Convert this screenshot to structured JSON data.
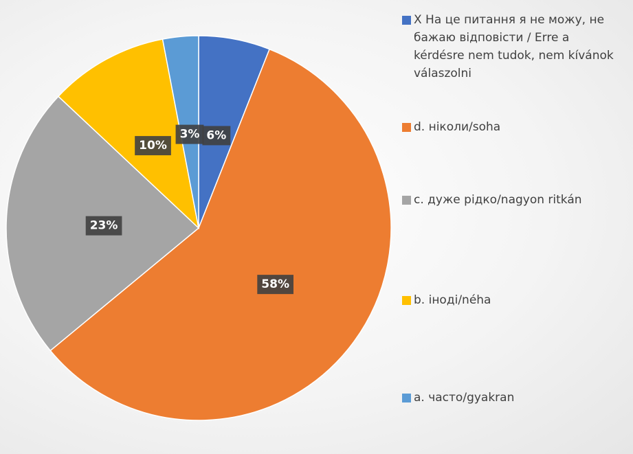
{
  "chart_data": {
    "type": "pie",
    "categories": [
      "X На це питання я не можу, не бажаю відповісти / Erre a kérdésre nem tudok, nem kívánok válaszolni",
      "d. ніколи/soha",
      "c. дуже рідко/nagyon ritkán",
      "b. іноді/néha",
      "a. часто/gyakran"
    ],
    "values": [
      6,
      58,
      23,
      10,
      3
    ],
    "value_labels": [
      "6%",
      "58%",
      "23%",
      "10%",
      "3%"
    ],
    "colors": [
      "#4472c4",
      "#ed7d31",
      "#a5a5a5",
      "#ffc000",
      "#5b9bd5"
    ],
    "legend": "right"
  }
}
